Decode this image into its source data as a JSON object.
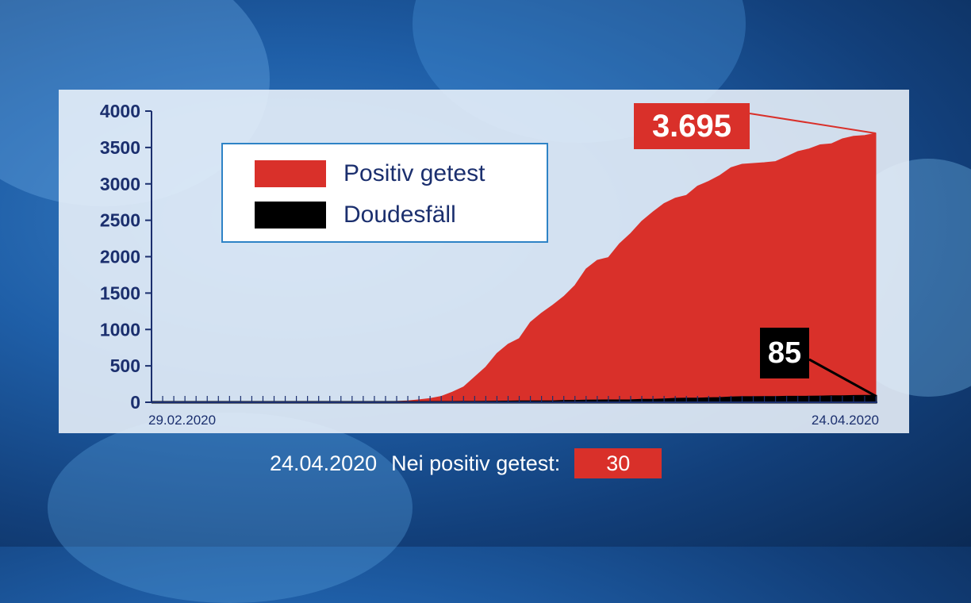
{
  "chart_data": {
    "type": "area",
    "ylim": [
      0,
      4000
    ],
    "yticks": [
      "4000",
      "3500",
      "3000",
      "2500",
      "2000",
      "1500",
      "1000",
      "500",
      "0"
    ],
    "x_start_label": "29.02.2020",
    "x_end_label": "24.04.2020",
    "series": [
      {
        "name": "Positiv getest",
        "color": "#d9302a",
        "values": [
          0,
          0,
          0,
          0,
          0,
          0,
          0,
          0,
          0,
          0,
          0,
          0,
          0,
          0,
          0,
          0,
          0,
          0,
          1,
          3,
          5,
          7,
          12,
          20,
          34,
          51,
          81,
          140,
          210,
          345,
          484,
          670,
          798,
          875,
          1099,
          1225,
          1333,
          1453,
          1605,
          1831,
          1950,
          1988,
          2178,
          2319,
          2487,
          2615,
          2729,
          2804,
          2843,
          2970,
          3034,
          3115,
          3223,
          3270,
          3281,
          3292,
          3307,
          3373,
          3444,
          3480,
          3537,
          3550,
          3618,
          3654,
          3665,
          3695
        ]
      },
      {
        "name": "Doudesfäll",
        "color": "#000000",
        "values": [
          0,
          0,
          0,
          0,
          0,
          0,
          0,
          0,
          0,
          0,
          0,
          0,
          0,
          0,
          0,
          0,
          0,
          0,
          0,
          0,
          0,
          0,
          0,
          0,
          0,
          0,
          0,
          0,
          1,
          1,
          2,
          4,
          5,
          8,
          8,
          9,
          9,
          15,
          15,
          18,
          21,
          22,
          22,
          23,
          29,
          31,
          36,
          44,
          46,
          46,
          52,
          54,
          62,
          66,
          67,
          69,
          69,
          72,
          72,
          73,
          75,
          78,
          80,
          83,
          84,
          85
        ]
      }
    ],
    "annotations": {
      "positive_total": "3.695",
      "deaths_total": "85"
    }
  },
  "legend": {
    "positive_label": "Positiv getest",
    "deaths_label": "Doudesfäll"
  },
  "footer": {
    "date": "24.04.2020",
    "label": "Nei positiv getest:",
    "value": "30"
  },
  "colors": {
    "positive": "#d9302a",
    "deaths": "#000000",
    "axis": "#1b2f6e",
    "legend_border": "#2e83c6"
  }
}
